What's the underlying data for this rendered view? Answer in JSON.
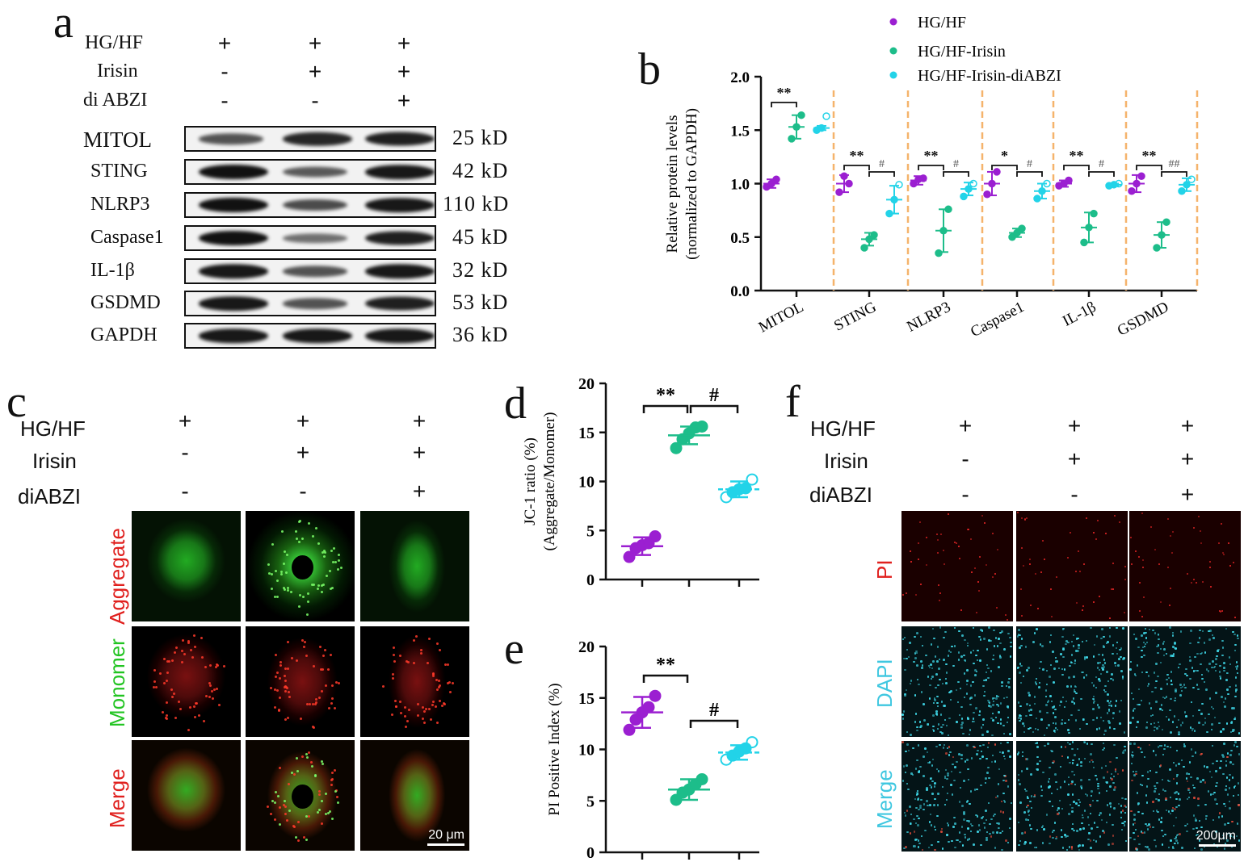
{
  "panels": {
    "a": "a",
    "b": "b",
    "c": "c",
    "d": "d",
    "e": "e",
    "f": "f"
  },
  "conditions": {
    "hg_hf": "HG/HF",
    "irisin": "Irisin",
    "diabzi_a": "di ABZI",
    "diabzi": "diABZI",
    "plus": "+",
    "minus": "-"
  },
  "blot": {
    "rows": [
      {
        "label": "MITOL",
        "kd": "25 kD"
      },
      {
        "label": "STING",
        "kd": "42 kD"
      },
      {
        "label": "NLRP3",
        "kd": "110 kD"
      },
      {
        "label": "Caspase1",
        "kd": "45 kD"
      },
      {
        "label": "IL-1β",
        "kd": "32 kD"
      },
      {
        "label": "GSDMD",
        "kd": "53 kD"
      },
      {
        "label": "GAPDH",
        "kd": "36 kD"
      }
    ],
    "band_intensity": [
      [
        0.55,
        0.85,
        0.9
      ],
      [
        1.0,
        0.5,
        0.95
      ],
      [
        1.0,
        0.6,
        0.95
      ],
      [
        1.0,
        0.35,
        0.9
      ],
      [
        0.95,
        0.55,
        0.95
      ],
      [
        0.95,
        0.55,
        0.9
      ],
      [
        0.95,
        0.95,
        0.95
      ]
    ]
  },
  "colors": {
    "hg_hf": "#9b1fd1",
    "irisin": "#1dbd8a",
    "diabzi": "#22d3e8",
    "divider": "#f5b36b"
  },
  "chart_data": [
    {
      "id": "b",
      "type": "scatter",
      "legend": [
        "HG/HF",
        "HG/HF-Irisin",
        "HG/HF-Irisin-diABZI"
      ],
      "legend_position": "top-right",
      "ylabel": "Relative protein levels\n(normalized to GAPDH)",
      "ylim": [
        0,
        2.0
      ],
      "yticks": [
        "0.0",
        "0.5",
        "1.0",
        "1.5",
        "2.0"
      ],
      "categories": [
        "MITOL",
        "STING",
        "NLRP3",
        "Caspase1",
        "IL-1β",
        "GSDMD"
      ],
      "series": [
        {
          "name": "HG/HF",
          "mean": [
            1.0,
            1.0,
            1.03,
            1.0,
            1.0,
            1.0
          ],
          "sd": [
            0.04,
            0.08,
            0.04,
            0.11,
            0.03,
            0.08
          ],
          "points": [
            [
              0.97,
              1.0,
              1.04
            ],
            [
              0.92,
              1.07,
              1.0
            ],
            [
              1.0,
              1.04,
              1.05
            ],
            [
              0.9,
              1.0,
              1.11
            ],
            [
              0.98,
              1.0,
              1.03
            ],
            [
              0.93,
              1.0,
              1.07
            ]
          ]
        },
        {
          "name": "HG/HF-Irisin",
          "mean": [
            1.53,
            0.48,
            0.56,
            0.54,
            0.59,
            0.52
          ],
          "sd": [
            0.11,
            0.06,
            0.2,
            0.04,
            0.14,
            0.12
          ],
          "points": [
            [
              1.42,
              1.53,
              1.64
            ],
            [
              0.4,
              0.48,
              0.52
            ],
            [
              0.35,
              0.56,
              0.76
            ],
            [
              0.5,
              0.54,
              0.58
            ],
            [
              0.45,
              0.59,
              0.72
            ],
            [
              0.4,
              0.52,
              0.64
            ]
          ]
        },
        {
          "name": "HG/HF-Irisin-diABZI",
          "mean": [
            1.52,
            0.85,
            0.95,
            0.93,
            0.99,
            0.99
          ],
          "sd": [
            0.02,
            0.13,
            0.06,
            0.07,
            0.01,
            0.06
          ],
          "points": [
            [
              1.5,
              1.52,
              1.63
            ],
            [
              0.72,
              0.85,
              0.99
            ],
            [
              0.88,
              0.95,
              1.0
            ],
            [
              0.86,
              0.93,
              1.0
            ],
            [
              0.98,
              0.99,
              1.0
            ],
            [
              0.93,
              0.99,
              1.04
            ]
          ]
        }
      ],
      "significance": [
        {
          "category": "MITOL",
          "pair": "1-2",
          "label": "**"
        },
        {
          "category": "STING",
          "pair": "1-2",
          "label": "**"
        },
        {
          "category": "STING",
          "pair": "2-3",
          "label": "#"
        },
        {
          "category": "NLRP3",
          "pair": "1-2",
          "label": "**"
        },
        {
          "category": "NLRP3",
          "pair": "2-3",
          "label": "#"
        },
        {
          "category": "Caspase1",
          "pair": "1-2",
          "label": "*"
        },
        {
          "category": "Caspase1",
          "pair": "2-3",
          "label": "#"
        },
        {
          "category": "IL-1β",
          "pair": "1-2",
          "label": "**"
        },
        {
          "category": "IL-1β",
          "pair": "2-3",
          "label": "#"
        },
        {
          "category": "GSDMD",
          "pair": "1-2",
          "label": "**"
        },
        {
          "category": "GSDMD",
          "pair": "2-3",
          "label": "##"
        }
      ]
    },
    {
      "id": "d",
      "type": "scatter",
      "ylabel": "JC-1 ratio (%)\n(Aggregate/Monomer)",
      "ylim": [
        0,
        20
      ],
      "yticks": [
        "0",
        "5",
        "10",
        "15",
        "20"
      ],
      "series": [
        {
          "name": "HG/HF",
          "mean": 3.4,
          "sd": 0.9,
          "points": [
            2.3,
            3.2,
            3.5,
            3.7,
            4.4
          ]
        },
        {
          "name": "HG/HF-Irisin",
          "mean": 14.7,
          "sd": 0.9,
          "points": [
            13.4,
            14.3,
            14.9,
            15.5,
            15.6
          ]
        },
        {
          "name": "HG/HF-Irisin-diABZI",
          "mean": 9.2,
          "sd": 0.8,
          "points": [
            8.4,
            8.9,
            9.2,
            9.3,
            10.2
          ]
        }
      ],
      "significance": [
        {
          "pair": "1-2",
          "label": "**"
        },
        {
          "pair": "2-3",
          "label": "#"
        }
      ]
    },
    {
      "id": "e",
      "type": "scatter",
      "ylabel": "PI Positive Index (%)",
      "ylim": [
        0,
        20
      ],
      "yticks": [
        "0",
        "5",
        "10",
        "15",
        "20"
      ],
      "series": [
        {
          "name": "HG/HF",
          "mean": 13.6,
          "sd": 1.5,
          "points": [
            11.9,
            12.9,
            13.6,
            14.1,
            15.2
          ]
        },
        {
          "name": "HG/HF-Irisin",
          "mean": 6.1,
          "sd": 1.0,
          "points": [
            5.1,
            5.8,
            6.1,
            6.6,
            7.1
          ]
        },
        {
          "name": "HG/HF-Irisin-diABZI",
          "mean": 9.7,
          "sd": 0.7,
          "points": [
            9.0,
            9.4,
            9.8,
            10.1,
            10.7
          ]
        }
      ],
      "significance": [
        {
          "pair": "1-2",
          "label": "**"
        },
        {
          "pair": "2-3",
          "label": "#"
        }
      ]
    }
  ],
  "micro_c": {
    "rows": [
      "Aggregate",
      "Monomer",
      "Merge"
    ],
    "scale": "20 μm"
  },
  "micro_f": {
    "rows": [
      "PI",
      "DAPI",
      "Merge"
    ],
    "scale": "200μm"
  }
}
